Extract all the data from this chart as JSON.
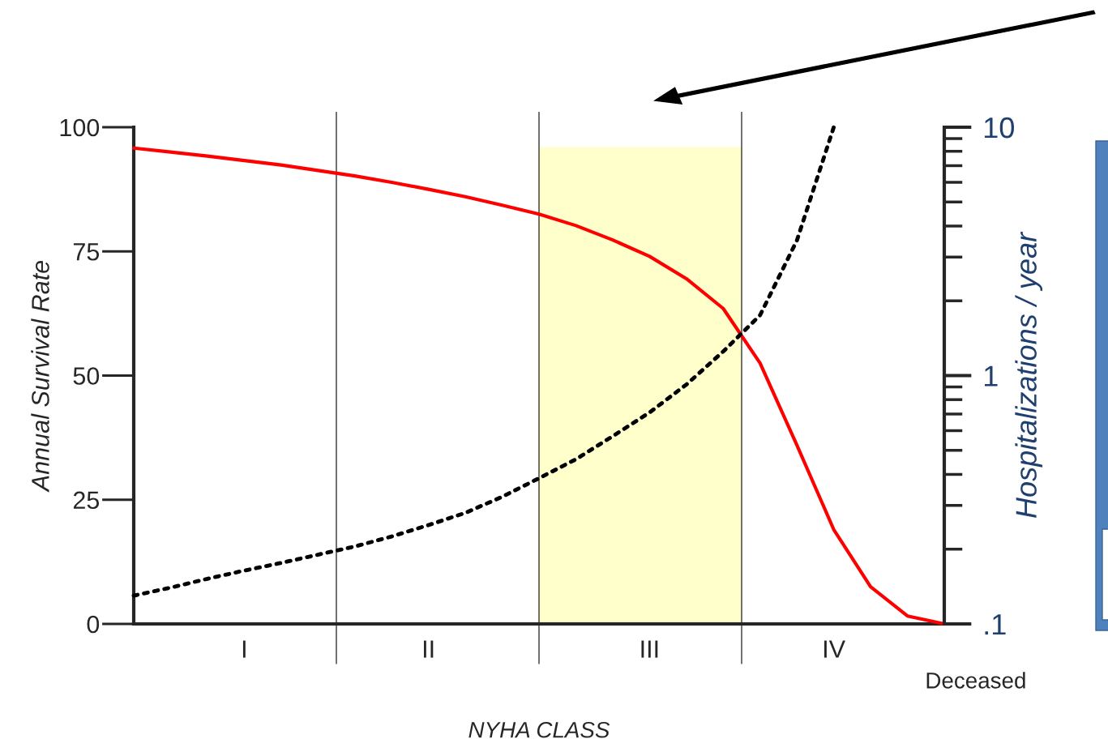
{
  "chart_data": {
    "type": "line",
    "xlabel": "NYHA CLASS",
    "ylabel": "Annual Survival Rate",
    "y2label": "Hospitalizations / year",
    "categories": [
      null,
      null,
      null,
      "I",
      null,
      null,
      null,
      null,
      "II",
      null,
      null,
      null,
      null,
      null,
      "III",
      null,
      null,
      null,
      null,
      "IV",
      null,
      null,
      null
    ],
    "ylim": [
      0,
      100
    ],
    "yticks": [
      0,
      25,
      50,
      75,
      100
    ],
    "y2lim": [
      0.1,
      10
    ],
    "y2ticks": [
      {
        "value": 0.1,
        "label": ".1"
      },
      1,
      10
    ],
    "log": "y2",
    "series": [
      {
        "color": "#ff0000",
        "line_style": "solid",
        "values": [
          95.8,
          95.0,
          94.2,
          93.3,
          92.4,
          91.3,
          90.2,
          88.9,
          87.5,
          86,
          84.3,
          82.5,
          80.2,
          77.3,
          74,
          69.5,
          63.5,
          52.5,
          36,
          19,
          7.5,
          1.6,
          0
        ]
      },
      {
        "color": "#000000",
        "line_style": "dotted",
        "axis": "y2",
        "values": [
          0.13,
          0.14,
          0.152,
          0.164,
          0.176,
          0.19,
          0.205,
          0.225,
          0.25,
          0.28,
          0.325,
          0.386,
          0.46,
          0.57,
          0.71,
          0.92,
          1.25,
          1.75,
          3.5,
          10,
          null,
          null,
          null
        ]
      }
    ],
    "annotations": [
      "Deceased"
    ]
  }
}
